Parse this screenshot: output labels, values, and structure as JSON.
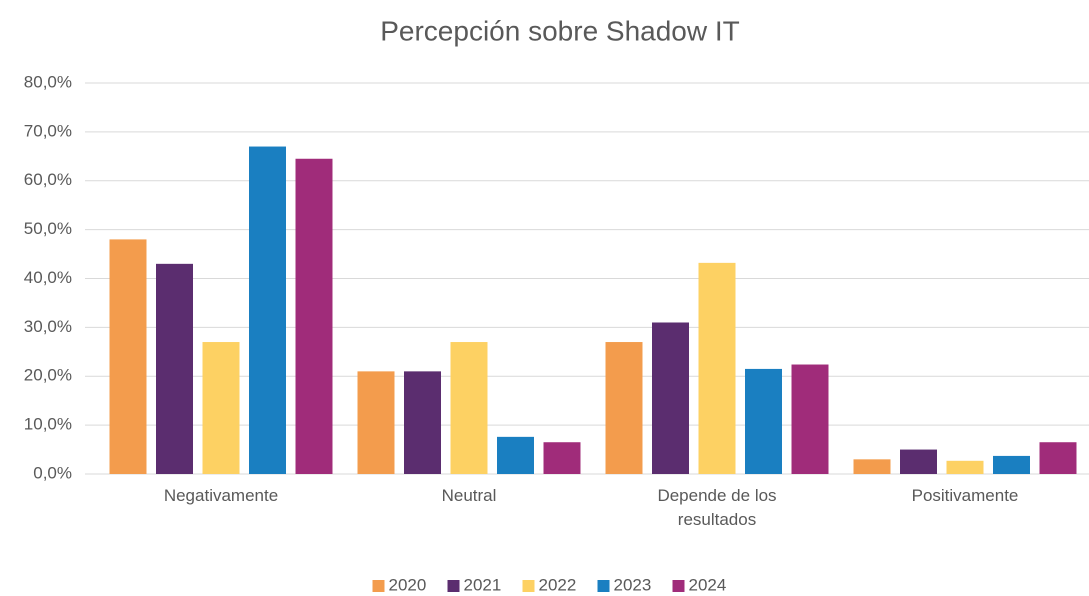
{
  "chart_data": {
    "type": "bar",
    "title": "Percepción sobre Shadow IT",
    "categories": [
      "Negativamente",
      "Neutral",
      "Depende de los resultados",
      "Positivamente"
    ],
    "series": [
      {
        "name": "2020",
        "color": "#f39c4d",
        "values": [
          48,
          21,
          27,
          3
        ]
      },
      {
        "name": "2021",
        "color": "#5b2d6f",
        "values": [
          43,
          21,
          31,
          5
        ]
      },
      {
        "name": "2022",
        "color": "#fdd163",
        "values": [
          27,
          27,
          43.2,
          2.7
        ]
      },
      {
        "name": "2023",
        "color": "#1a7fc1",
        "values": [
          67,
          7.6,
          21.5,
          3.7
        ]
      },
      {
        "name": "2024",
        "color": "#a02c7a",
        "values": [
          64.5,
          6.5,
          22.4,
          6.5
        ]
      }
    ],
    "ylim": [
      0,
      80
    ],
    "yticks": [
      {
        "value": 0,
        "label": "0,0%"
      },
      {
        "value": 10,
        "label": "10,0%"
      },
      {
        "value": 20,
        "label": "20,0%"
      },
      {
        "value": 30,
        "label": "30,0%"
      },
      {
        "value": 40,
        "label": "40,0%"
      },
      {
        "value": 50,
        "label": "50,0%"
      },
      {
        "value": 60,
        "label": "60,0%"
      },
      {
        "value": 70,
        "label": "70,0%"
      },
      {
        "value": 80,
        "label": "80,0%"
      }
    ],
    "grid": true,
    "legend": "bottom"
  }
}
